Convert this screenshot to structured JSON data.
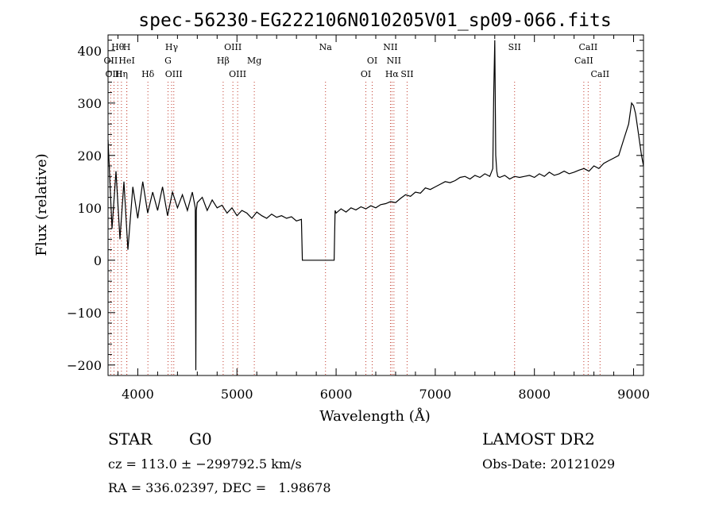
{
  "chart_data": {
    "type": "line",
    "title": "spec-56230-EG222106N010205V01_sp09-066.fits",
    "xlabel": "Wavelength (Å)",
    "ylabel": "Flux (relative)",
    "xlim": [
      3700,
      9100
    ],
    "ylim": [
      -220,
      430
    ],
    "xticks": [
      4000,
      5000,
      6000,
      7000,
      8000,
      9000
    ],
    "yticks": [
      -200,
      -100,
      0,
      100,
      200,
      300,
      400
    ],
    "grid": false,
    "series": [
      {
        "x": [
          3700,
          3740,
          3780,
          3820,
          3860,
          3900,
          3950,
          4000,
          4050,
          4100,
          4150,
          4200,
          4250,
          4300,
          4350,
          4400,
          4450,
          4500,
          4550,
          4580,
          4585,
          4590,
          4600,
          4650,
          4700,
          4750,
          4800,
          4850,
          4900,
          4950,
          5000,
          5050,
          5100,
          5150,
          5200,
          5250,
          5300,
          5350,
          5400,
          5450,
          5500,
          5550,
          5600,
          5650,
          5660,
          5670,
          5700,
          5800,
          5900,
          5980,
          5990,
          6000,
          6050,
          6100,
          6150,
          6200,
          6250,
          6300,
          6350,
          6400,
          6450,
          6500,
          6550,
          6600,
          6650,
          6700,
          6750,
          6800,
          6850,
          6900,
          6950,
          7000,
          7050,
          7100,
          7150,
          7200,
          7250,
          7300,
          7350,
          7400,
          7450,
          7500,
          7550,
          7580,
          7590,
          7600,
          7610,
          7620,
          7630,
          7650,
          7700,
          7750,
          7800,
          7850,
          7900,
          7950,
          8000,
          8050,
          8100,
          8150,
          8200,
          8250,
          8300,
          8350,
          8400,
          8450,
          8500,
          8550,
          8600,
          8650,
          8700,
          8750,
          8800,
          8850,
          8900,
          8950,
          8980,
          9000,
          9020,
          9050,
          9080,
          9100
        ],
        "y": [
          230,
          60,
          170,
          40,
          150,
          20,
          140,
          80,
          150,
          90,
          130,
          95,
          140,
          85,
          130,
          100,
          125,
          95,
          130,
          100,
          -210,
          95,
          110,
          120,
          95,
          115,
          100,
          105,
          90,
          100,
          85,
          95,
          90,
          80,
          92,
          85,
          80,
          88,
          82,
          85,
          80,
          83,
          75,
          78,
          0,
          0,
          0,
          0,
          0,
          0,
          95,
          90,
          98,
          92,
          100,
          96,
          102,
          98,
          104,
          100,
          106,
          108,
          112,
          110,
          118,
          125,
          122,
          130,
          128,
          138,
          135,
          140,
          145,
          150,
          148,
          152,
          158,
          160,
          155,
          162,
          158,
          165,
          160,
          175,
          320,
          420,
          200,
          170,
          160,
          158,
          162,
          155,
          160,
          158,
          160,
          162,
          158,
          165,
          160,
          168,
          162,
          165,
          170,
          165,
          168,
          172,
          175,
          170,
          180,
          175,
          185,
          190,
          195,
          200,
          230,
          260,
          300,
          295,
          280,
          240,
          200,
          180
        ]
      }
    ],
    "lines": [
      {
        "label": "Hθ",
        "x": 3798,
        "row": 1
      },
      {
        "label": "OII",
        "x": 3727,
        "row": 2
      },
      {
        "label": "OIII",
        "x": 3760,
        "row": 3
      },
      {
        "label": "Hη",
        "x": 3835,
        "row": 3
      },
      {
        "label": "H",
        "x": 3889,
        "row": 1
      },
      {
        "label": "HeI",
        "x": 3889,
        "row": 2
      },
      {
        "label": "Hδ",
        "x": 4102,
        "row": 3
      },
      {
        "label": "Hγ",
        "x": 4341,
        "row": 1
      },
      {
        "label": "G",
        "x": 4305,
        "row": 2
      },
      {
        "label": "OIII",
        "x": 4363,
        "row": 3
      },
      {
        "label": "OIII",
        "x": 4959,
        "row": 1
      },
      {
        "label": "Hβ",
        "x": 4861,
        "row": 2
      },
      {
        "label": "OIII",
        "x": 5007,
        "row": 3
      },
      {
        "label": "Mg",
        "x": 5175,
        "row": 2
      },
      {
        "label": "Na",
        "x": 5893,
        "row": 1
      },
      {
        "label": "OI",
        "x": 6300,
        "row": 3
      },
      {
        "label": "OI",
        "x": 6364,
        "row": 2
      },
      {
        "label": "NII",
        "x": 6548,
        "row": 1
      },
      {
        "label": "NII",
        "x": 6583,
        "row": 2
      },
      {
        "label": "Hα",
        "x": 6563,
        "row": 3
      },
      {
        "label": "SII",
        "x": 6716,
        "row": 3
      },
      {
        "label": "SII",
        "x": 7800,
        "row": 1
      },
      {
        "label": "CaII",
        "x": 8498,
        "row": 2
      },
      {
        "label": "CaII",
        "x": 8542,
        "row": 1
      },
      {
        "label": "CaII",
        "x": 8662,
        "row": 3
      }
    ]
  },
  "info": {
    "object_class": "STAR",
    "subclass": "G0",
    "survey": "LAMOST DR2",
    "cz": "cz = 113.0 ± −299792.5 km/s",
    "obs_date": "Obs-Date: 20121029",
    "coords": "RA = 336.02397, DEC =   1.98678"
  }
}
